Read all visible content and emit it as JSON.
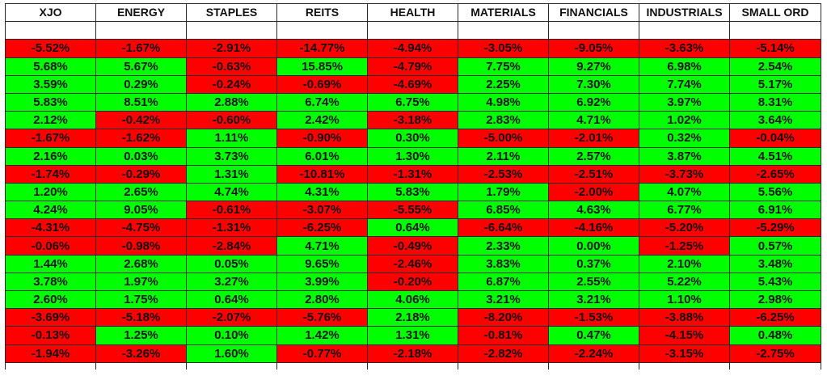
{
  "headers": [
    "XJO",
    "ENERGY",
    "STAPLES",
    "REITS",
    "HEALTH",
    "MATERIALS",
    "FINANCIALS",
    "INDUSTRIALS",
    "SMALL ORD"
  ],
  "rows": [
    [
      "-5.52%",
      "-1.67%",
      "-2.91%",
      "-14.77%",
      "-4.94%",
      "-3.05%",
      "-9.05%",
      "-3.63%",
      "-5.14%"
    ],
    [
      "5.68%",
      "5.67%",
      "-0.63%",
      "15.85%",
      "-4.79%",
      "7.75%",
      "9.27%",
      "6.98%",
      "2.54%"
    ],
    [
      "3.59%",
      "0.29%",
      "-0.24%",
      "-0.69%",
      "-4.69%",
      "2.25%",
      "7.30%",
      "7.74%",
      "5.17%"
    ],
    [
      "5.83%",
      "8.51%",
      "2.88%",
      "6.74%",
      "6.75%",
      "4.98%",
      "6.92%",
      "3.97%",
      "8.31%"
    ],
    [
      "2.12%",
      "-0.42%",
      "-0.60%",
      "2.42%",
      "-3.18%",
      "2.83%",
      "4.71%",
      "1.02%",
      "3.64%"
    ],
    [
      "-1.67%",
      "-1.62%",
      "1.11%",
      "-0.90%",
      "0.30%",
      "-5.00%",
      "-2.01%",
      "0.32%",
      "-0.04%"
    ],
    [
      "2.16%",
      "0.03%",
      "3.73%",
      "6.01%",
      "1.30%",
      "2.11%",
      "2.57%",
      "3.87%",
      "4.51%"
    ],
    [
      "-1.74%",
      "-0.29%",
      "1.31%",
      "-10.81%",
      "-1.31%",
      "-2.53%",
      "-2.51%",
      "-3.73%",
      "-2.65%"
    ],
    [
      "1.20%",
      "2.65%",
      "4.74%",
      "4.31%",
      "5.83%",
      "1.79%",
      "-2.00%",
      "4.07%",
      "5.56%"
    ],
    [
      "4.24%",
      "9.05%",
      "-0.61%",
      "-3.07%",
      "-5.55%",
      "6.85%",
      "4.63%",
      "6.77%",
      "6.91%"
    ],
    [
      "-4.31%",
      "-4.75%",
      "-1.31%",
      "-6.25%",
      "0.64%",
      "-6.64%",
      "-4.16%",
      "-5.20%",
      "-5.29%"
    ],
    [
      "-0.06%",
      "-0.98%",
      "-2.84%",
      "4.71%",
      "-0.49%",
      "2.33%",
      "0.00%",
      "-1.25%",
      "0.57%"
    ],
    [
      "1.44%",
      "2.68%",
      "0.05%",
      "9.65%",
      "-2.46%",
      "3.83%",
      "0.37%",
      "2.10%",
      "3.48%"
    ],
    [
      "3.78%",
      "1.97%",
      "3.27%",
      "3.99%",
      "-0.20%",
      "6.87%",
      "2.55%",
      "5.22%",
      "5.43%"
    ],
    [
      "2.60%",
      "1.75%",
      "0.64%",
      "2.80%",
      "4.06%",
      "3.21%",
      "3.21%",
      "1.10%",
      "2.98%"
    ],
    [
      "-3.69%",
      "-5.18%",
      "-2.07%",
      "-5.76%",
      "2.18%",
      "-8.20%",
      "-1.53%",
      "-3.88%",
      "-6.25%"
    ],
    [
      "-0.13%",
      "1.25%",
      "0.10%",
      "1.42%",
      "1.31%",
      "-0.81%",
      "0.47%",
      "-4.15%",
      "0.48%"
    ],
    [
      "-1.94%",
      "-3.26%",
      "1.60%",
      "-0.77%",
      "-2.18%",
      "-2.82%",
      "-2.24%",
      "-3.15%",
      "-2.75%"
    ]
  ],
  "colors": {
    "positive": "#00ff00",
    "negative": "#ff0000",
    "grid": "#2a2a2a",
    "background": "#ffffff"
  }
}
